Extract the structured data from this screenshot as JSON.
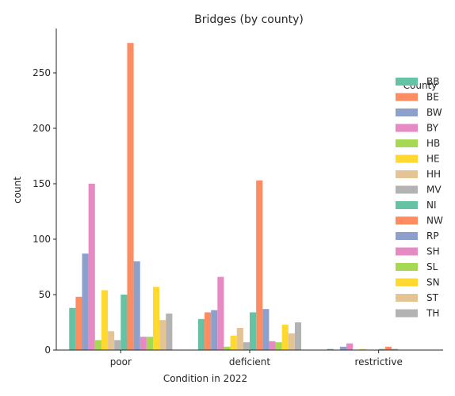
{
  "chart_data": {
    "type": "bar",
    "title": "Bridges (by county)",
    "xlabel": "Condition in 2022",
    "ylabel": "count",
    "categories": [
      "poor",
      "deficient",
      "restrictive"
    ],
    "ylim": [
      0,
      290
    ],
    "yticks": [
      0,
      50,
      100,
      150,
      200,
      250
    ],
    "grid": false,
    "legend": {
      "title": "County",
      "placement": "right"
    },
    "series": [
      {
        "name": "BB",
        "color": "#66c2a5",
        "values": [
          38,
          28,
          1
        ]
      },
      {
        "name": "BE",
        "color": "#fc8d62",
        "values": [
          48,
          34,
          0
        ]
      },
      {
        "name": "BW",
        "color": "#8da0cb",
        "values": [
          87,
          36,
          3
        ]
      },
      {
        "name": "BY",
        "color": "#e78ac3",
        "values": [
          150,
          66,
          6
        ]
      },
      {
        "name": "HB",
        "color": "#a6d854",
        "values": [
          9,
          3,
          0
        ]
      },
      {
        "name": "HE",
        "color": "#ffd92f",
        "values": [
          54,
          13,
          1
        ]
      },
      {
        "name": "HH",
        "color": "#e5c494",
        "values": [
          17,
          20,
          0
        ]
      },
      {
        "name": "MV",
        "color": "#b3b3b3",
        "values": [
          9,
          7,
          0
        ]
      },
      {
        "name": "NI",
        "color": "#66c2a5",
        "values": [
          50,
          34,
          1
        ]
      },
      {
        "name": "NW",
        "color": "#fc8d62",
        "values": [
          277,
          153,
          3
        ]
      },
      {
        "name": "RP",
        "color": "#8da0cb",
        "values": [
          80,
          37,
          1
        ]
      },
      {
        "name": "SH",
        "color": "#e78ac3",
        "values": [
          12,
          8,
          0
        ]
      },
      {
        "name": "SL",
        "color": "#a6d854",
        "values": [
          12,
          7,
          0
        ]
      },
      {
        "name": "SN",
        "color": "#ffd92f",
        "values": [
          57,
          23,
          0
        ]
      },
      {
        "name": "ST",
        "color": "#e5c494",
        "values": [
          27,
          15,
          0
        ]
      },
      {
        "name": "TH",
        "color": "#b3b3b3",
        "values": [
          33,
          25,
          0
        ]
      }
    ]
  }
}
